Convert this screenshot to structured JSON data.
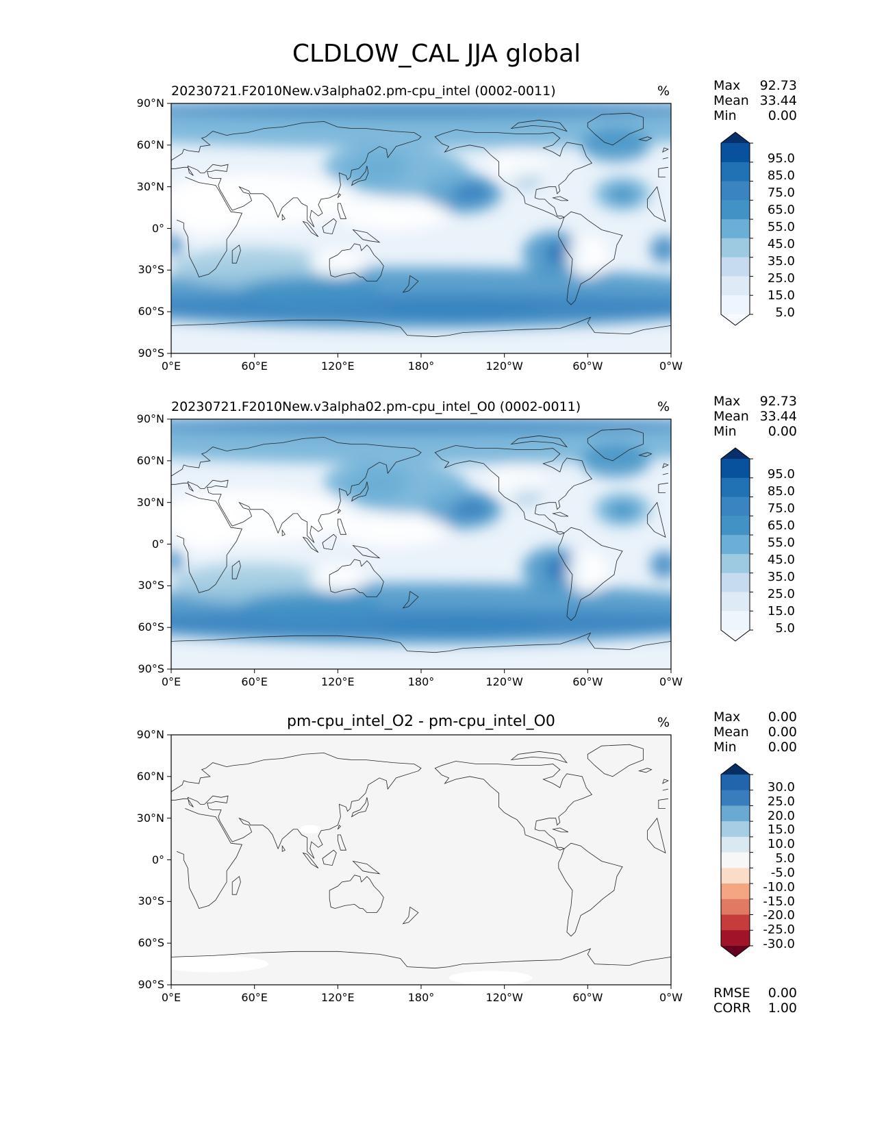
{
  "chart_data": {
    "title": "CLDLOW_CAL JJA global",
    "panels": [
      {
        "type": "heatmap",
        "map_projection": "PlateCarree",
        "title": "20230721.F2010New.v3alpha02.pm-cpu_intel (0002-0011)",
        "units": "%",
        "stats": [
          {
            "label": "Max",
            "value": "92.73"
          },
          {
            "label": "Mean",
            "value": "33.44"
          },
          {
            "label": "Min",
            "value": "0.00"
          }
        ],
        "colorbar": {
          "labels": [
            "95.0",
            "85.0",
            "75.0",
            "65.0",
            "55.0",
            "45.0",
            "35.0",
            "25.0",
            "15.0",
            "5.0"
          ],
          "colors": [
            "#08306b",
            "#08519c",
            "#2171b5",
            "#3a85c1",
            "#4292c6",
            "#6baed6",
            "#9ecae1",
            "#c6dbef",
            "#deebf7",
            "#eef5fc",
            "#f7fbff"
          ],
          "extend": "both"
        },
        "xticks": [
          "0°E",
          "60°E",
          "120°E",
          "180°",
          "120°W",
          "60°W",
          "0°W"
        ],
        "yticks": [
          "90°N",
          "60°N",
          "30°N",
          "0°",
          "30°S",
          "60°S",
          "90°S"
        ]
      },
      {
        "type": "heatmap",
        "map_projection": "PlateCarree",
        "title": "20230721.F2010New.v3alpha02.pm-cpu_intel_O0 (0002-0011)",
        "units": "%",
        "stats": [
          {
            "label": "Max",
            "value": "92.73"
          },
          {
            "label": "Mean",
            "value": "33.44"
          },
          {
            "label": "Min",
            "value": "0.00"
          }
        ],
        "colorbar": {
          "labels": [
            "95.0",
            "85.0",
            "75.0",
            "65.0",
            "55.0",
            "45.0",
            "35.0",
            "25.0",
            "15.0",
            "5.0"
          ],
          "colors": [
            "#08306b",
            "#08519c",
            "#2171b5",
            "#3a85c1",
            "#4292c6",
            "#6baed6",
            "#9ecae1",
            "#c6dbef",
            "#deebf7",
            "#eef5fc",
            "#f7fbff"
          ],
          "extend": "both"
        },
        "xticks": [
          "0°E",
          "60°E",
          "120°E",
          "180°",
          "120°W",
          "60°W",
          "0°W"
        ],
        "yticks": [
          "90°N",
          "60°N",
          "30°N",
          "0°",
          "30°S",
          "60°S",
          "90°S"
        ]
      },
      {
        "type": "heatmap",
        "map_projection": "PlateCarree",
        "title": "pm-cpu_intel_O2 - pm-cpu_intel_O0",
        "units": "%",
        "stats": [
          {
            "label": "Max",
            "value": "0.00"
          },
          {
            "label": "Mean",
            "value": "0.00"
          },
          {
            "label": "Min",
            "value": "0.00"
          }
        ],
        "extra_stats": [
          {
            "label": "RMSE",
            "value": "0.00"
          },
          {
            "label": "CORR",
            "value": "1.00"
          }
        ],
        "colorbar": {
          "labels": [
            "30.0",
            "25.0",
            "20.0",
            "15.0",
            "10.0",
            "5.0",
            "-5.0",
            "-10.0",
            "-15.0",
            "-20.0",
            "-25.0",
            "-30.0"
          ],
          "colors": [
            "#053061",
            "#2166ac",
            "#3a7dbd",
            "#6aa9d1",
            "#a6cde4",
            "#d9e8f1",
            "#f7f7f7",
            "#fbdcc9",
            "#f4a582",
            "#e07a62",
            "#c43c3c",
            "#a11329",
            "#67001f"
          ],
          "extend": "both"
        },
        "xticks": [
          "0°E",
          "60°E",
          "120°E",
          "180°",
          "120°W",
          "60°W",
          "0°W"
        ],
        "yticks": [
          "90°N",
          "60°N",
          "30°N",
          "0°",
          "30°S",
          "60°S",
          "90°S"
        ]
      }
    ]
  }
}
